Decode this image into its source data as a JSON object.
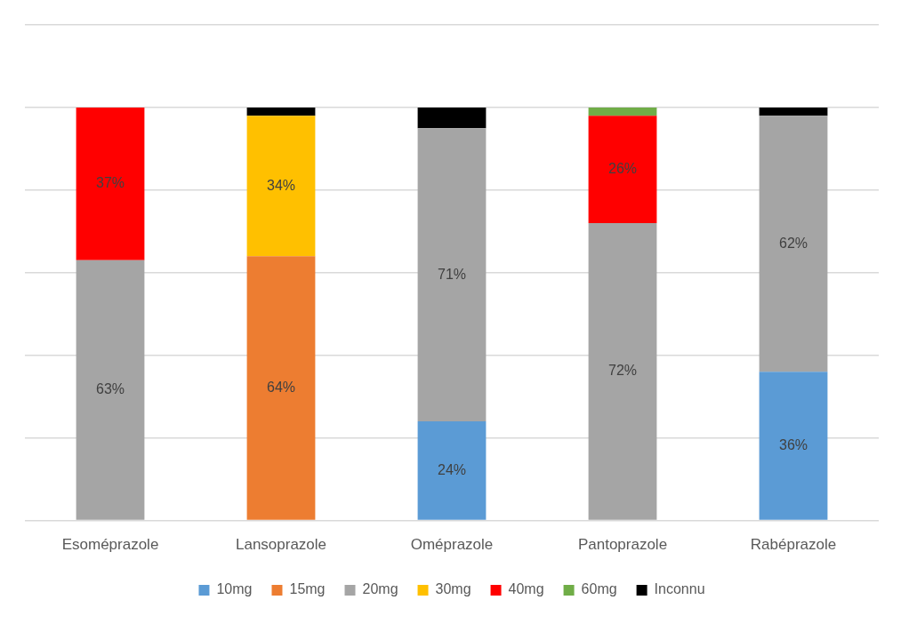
{
  "chart_data": {
    "type": "bar",
    "stacked": true,
    "categories": [
      "Esoméprazole",
      "Lansoprazole",
      "Oméprazole",
      "Pantoprazole",
      "Rabéprazole"
    ],
    "series": [
      {
        "name": "10mg",
        "color": "#5b9bd5",
        "values": [
          null,
          null,
          24,
          null,
          36
        ],
        "value_labels": [
          null,
          null,
          "24%",
          null,
          "36%"
        ]
      },
      {
        "name": "15mg",
        "color": "#ed7d31",
        "values": [
          null,
          64,
          null,
          null,
          null
        ],
        "value_labels": [
          null,
          "64%",
          null,
          null,
          null
        ]
      },
      {
        "name": "20mg",
        "color": "#a5a5a5",
        "values": [
          63,
          null,
          71,
          72,
          62
        ],
        "value_labels": [
          "63%",
          null,
          "71%",
          "72%",
          "62%"
        ]
      },
      {
        "name": "30mg",
        "color": "#ffc000",
        "values": [
          null,
          34,
          null,
          null,
          null
        ],
        "value_labels": [
          null,
          "34%",
          null,
          null,
          null
        ]
      },
      {
        "name": "40mg",
        "color": "#ff0000",
        "values": [
          37,
          null,
          null,
          26,
          null
        ],
        "value_labels": [
          "37%",
          null,
          null,
          "26%",
          null
        ]
      },
      {
        "name": "60mg",
        "color": "#70ad47",
        "values": [
          null,
          null,
          null,
          2,
          null
        ],
        "value_labels": [
          null,
          null,
          null,
          null,
          null
        ]
      },
      {
        "name": "Inconnu",
        "color": "#000000",
        "values": [
          null,
          2,
          5,
          null,
          2
        ],
        "value_labels": [
          null,
          null,
          null,
          null,
          null
        ]
      }
    ],
    "ylim": [
      0,
      120
    ],
    "yticks": [
      {
        "value": 0,
        "label": null
      },
      {
        "value": 20,
        "label": null
      },
      {
        "value": 40,
        "label": null
      },
      {
        "value": 60,
        "label": null
      },
      {
        "value": 80,
        "label": null
      },
      {
        "value": 100,
        "label": null
      },
      {
        "value": 120,
        "label": null
      }
    ],
    "tick_labels": "x",
    "grid": "y",
    "legend": "bottom"
  }
}
